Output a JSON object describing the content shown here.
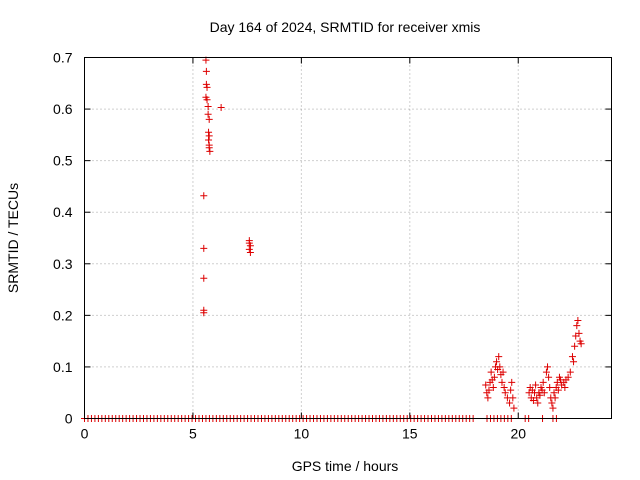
{
  "chart_data": {
    "type": "scatter",
    "title": "Day 164 of 2024, SRMTID for receiver xmis",
    "xlabel": "GPS time / hours",
    "ylabel": "SRMTID / TECUs",
    "xlim": [
      0,
      24.3
    ],
    "ylim": [
      0,
      0.7
    ],
    "xticks": [
      0,
      5,
      10,
      15,
      20
    ],
    "xtick_labels": [
      "0",
      "5",
      "10",
      "15",
      "20"
    ],
    "yticks": [
      0,
      0.1,
      0.2,
      0.3,
      0.4,
      0.5,
      0.6,
      0.7
    ],
    "ytick_labels": [
      "0",
      "0.1",
      "0.2",
      "0.3",
      "0.4",
      "0.5",
      "0.6",
      "0.7"
    ],
    "grid": true,
    "marker": "+",
    "color": "#dd0000",
    "series": [
      {
        "name": "SRMTID",
        "points": [
          [
            5.5,
            0.21
          ],
          [
            5.5,
            0.205
          ],
          [
            5.5,
            0.272
          ],
          [
            5.5,
            0.33
          ],
          [
            5.5,
            0.432
          ],
          [
            5.6,
            0.695
          ],
          [
            5.62,
            0.673
          ],
          [
            5.62,
            0.648
          ],
          [
            5.65,
            0.642
          ],
          [
            5.6,
            0.623
          ],
          [
            5.65,
            0.618
          ],
          [
            5.7,
            0.605
          ],
          [
            5.7,
            0.59
          ],
          [
            5.75,
            0.58
          ],
          [
            5.72,
            0.555
          ],
          [
            5.75,
            0.548
          ],
          [
            5.72,
            0.54
          ],
          [
            5.75,
            0.53
          ],
          [
            5.75,
            0.525
          ],
          [
            5.78,
            0.518
          ],
          [
            6.3,
            0.603
          ],
          [
            7.6,
            0.345
          ],
          [
            7.6,
            0.34
          ],
          [
            7.65,
            0.335
          ],
          [
            7.6,
            0.328
          ],
          [
            7.65,
            0.322
          ],
          [
            18.5,
            0.065
          ],
          [
            18.55,
            0.05
          ],
          [
            18.6,
            0.04
          ],
          [
            18.65,
            0.055
          ],
          [
            18.7,
            0.07
          ],
          [
            18.75,
            0.09
          ],
          [
            18.8,
            0.075
          ],
          [
            18.85,
            0.06
          ],
          [
            18.9,
            0.08
          ],
          [
            18.95,
            0.1
          ],
          [
            19.0,
            0.11
          ],
          [
            19.05,
            0.095
          ],
          [
            19.1,
            0.12
          ],
          [
            19.15,
            0.1
          ],
          [
            19.2,
            0.085
          ],
          [
            19.25,
            0.07
          ],
          [
            19.3,
            0.09
          ],
          [
            19.35,
            0.06
          ],
          [
            19.4,
            0.05
          ],
          [
            19.5,
            0.04
          ],
          [
            19.6,
            0.03
          ],
          [
            19.65,
            0.055
          ],
          [
            19.7,
            0.07
          ],
          [
            19.75,
            0.04
          ],
          [
            19.8,
            0.02
          ],
          [
            20.5,
            0.05
          ],
          [
            20.55,
            0.06
          ],
          [
            20.6,
            0.04
          ],
          [
            20.65,
            0.055
          ],
          [
            20.7,
            0.035
          ],
          [
            20.75,
            0.05
          ],
          [
            20.8,
            0.065
          ],
          [
            20.85,
            0.04
          ],
          [
            20.9,
            0.03
          ],
          [
            20.95,
            0.05
          ],
          [
            21.0,
            0.045
          ],
          [
            21.05,
            0.06
          ],
          [
            21.1,
            0.055
          ],
          [
            21.15,
            0.07
          ],
          [
            21.2,
            0.05
          ],
          [
            21.3,
            0.09
          ],
          [
            21.35,
            0.1
          ],
          [
            21.4,
            0.08
          ],
          [
            21.45,
            0.06
          ],
          [
            21.5,
            0.04
          ],
          [
            21.55,
            0.03
          ],
          [
            21.6,
            0.02
          ],
          [
            21.65,
            0.05
          ],
          [
            21.7,
            0.04
          ],
          [
            21.75,
            0.06
          ],
          [
            21.8,
            0.07
          ],
          [
            21.85,
            0.055
          ],
          [
            21.9,
            0.08
          ],
          [
            21.95,
            0.075
          ],
          [
            22.0,
            0.065
          ],
          [
            22.1,
            0.07
          ],
          [
            22.15,
            0.06
          ],
          [
            22.2,
            0.075
          ],
          [
            22.3,
            0.08
          ],
          [
            22.4,
            0.09
          ],
          [
            22.5,
            0.12
          ],
          [
            22.55,
            0.11
          ],
          [
            22.6,
            0.14
          ],
          [
            22.65,
            0.16
          ],
          [
            22.7,
            0.18
          ],
          [
            22.75,
            0.19
          ],
          [
            22.8,
            0.165
          ],
          [
            22.85,
            0.15
          ],
          [
            22.9,
            0.145
          ]
        ],
        "zero_run": {
          "x_start": 0.0,
          "x_end": 22.2,
          "step": 0.16,
          "y": 0,
          "gaps": [
            [
              18.0,
              18.5
            ],
            [
              19.8,
              20.3
            ],
            [
              20.5,
              21.0
            ],
            [
              21.2,
              21.5
            ],
            [
              21.9,
              22.1
            ]
          ]
        }
      }
    ]
  }
}
